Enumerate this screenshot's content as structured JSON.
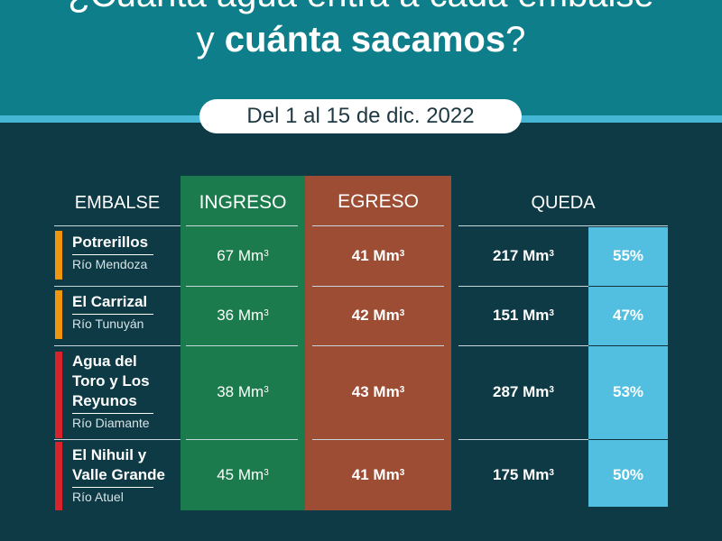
{
  "title": {
    "line1": "¿Cuánta agua entra a cada embalse",
    "line2_prefix": "y",
    "line2_bold": "cuánta sacamos",
    "line2_suffix": "?"
  },
  "date_range": "Del 1 al 15 de dic. 2022",
  "headers": {
    "embalse": "EMBALSE",
    "ingreso": "INGRESO",
    "egreso": "EGRESO",
    "queda": "QUEDA"
  },
  "unit_base": "Mm",
  "unit_exp": "3",
  "rows": [
    {
      "name_lines": [
        "Potrerillos"
      ],
      "river": "Río Mendoza",
      "status_color": "#f0960e",
      "ingreso": "67",
      "egreso": "41",
      "queda": "217",
      "percent": "55%"
    },
    {
      "name_lines": [
        "El Carrizal"
      ],
      "river": "Río Tunuyán",
      "status_color": "#f0960e",
      "ingreso": "36",
      "egreso": "42",
      "queda": "151",
      "percent": "47%"
    },
    {
      "name_lines": [
        "Agua del",
        "Toro y Los",
        "Reyunos"
      ],
      "river": "Río Diamante",
      "status_color": "#d9232c",
      "ingreso": "38",
      "egreso": "43",
      "queda": "287",
      "percent": "53%"
    },
    {
      "name_lines": [
        "El Nihuil y",
        "Valle Grande"
      ],
      "river": "Río Atuel",
      "status_color": "#d9232c",
      "ingreso": "45",
      "egreso": "41",
      "queda": "175",
      "percent": "50%"
    }
  ],
  "colors": {
    "background": "#0d3a45",
    "header": "#0f7e8b",
    "ingreso": "#1c7b4c",
    "egreso": "#9c4d33",
    "queda_percent": "#52bfe0"
  }
}
